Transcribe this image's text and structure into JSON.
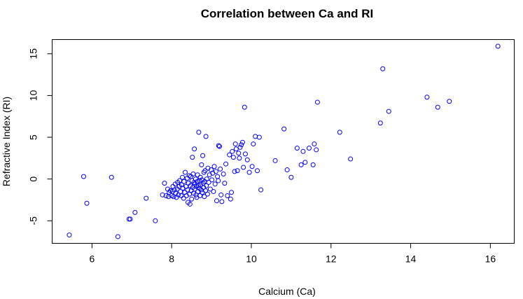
{
  "chart_data": {
    "type": "scatter",
    "title": "Correlation between Ca and RI",
    "xlabel": "Calcium (Ca)",
    "ylabel": "Refractive Index (RI)",
    "xlim": [
      5.0,
      16.6
    ],
    "ylim": [
      -7.7,
      16.7
    ],
    "xticks": [
      6,
      8,
      10,
      12,
      14,
      16
    ],
    "yticks": [
      -5,
      0,
      5,
      10,
      15
    ],
    "marker_color": "#0000ff",
    "points": [
      [
        5.43,
        -6.7
      ],
      [
        5.79,
        0.3
      ],
      [
        5.87,
        -2.9
      ],
      [
        6.49,
        0.2
      ],
      [
        6.65,
        -6.9
      ],
      [
        6.93,
        -4.8
      ],
      [
        6.96,
        -4.8
      ],
      [
        7.08,
        -4.0
      ],
      [
        7.36,
        -2.3
      ],
      [
        7.59,
        -5.0
      ],
      [
        7.77,
        -1.9
      ],
      [
        7.82,
        -0.5
      ],
      [
        7.86,
        -2.0
      ],
      [
        7.9,
        -1.2
      ],
      [
        7.92,
        -2.1
      ],
      [
        7.94,
        -1.6
      ],
      [
        7.97,
        -1.4
      ],
      [
        8.0,
        -2.0
      ],
      [
        8.02,
        -1.5
      ],
      [
        8.03,
        -0.9
      ],
      [
        8.05,
        -2.1
      ],
      [
        8.07,
        -1.3
      ],
      [
        8.09,
        -0.6
      ],
      [
        8.1,
        -1.7
      ],
      [
        8.12,
        -2.2
      ],
      [
        8.14,
        -1.2
      ],
      [
        8.15,
        -0.4
      ],
      [
        8.17,
        -1.9
      ],
      [
        8.19,
        -0.9
      ],
      [
        8.2,
        -0.2
      ],
      [
        8.22,
        -1.5
      ],
      [
        8.24,
        -2.0
      ],
      [
        8.25,
        -0.7
      ],
      [
        8.27,
        0.2
      ],
      [
        8.28,
        -1.1
      ],
      [
        8.3,
        -2.3
      ],
      [
        8.31,
        -0.3
      ],
      [
        8.33,
        -1.6
      ],
      [
        8.34,
        0.8
      ],
      [
        8.36,
        -0.9
      ],
      [
        8.37,
        -2.0
      ],
      [
        8.39,
        0.1
      ],
      [
        8.4,
        -1.3
      ],
      [
        8.41,
        -2.8
      ],
      [
        8.42,
        -0.5
      ],
      [
        8.44,
        0.4
      ],
      [
        8.45,
        -1.8
      ],
      [
        8.46,
        -3.0
      ],
      [
        8.47,
        -0.8
      ],
      [
        8.48,
        0.3
      ],
      [
        8.49,
        -1.4
      ],
      [
        8.5,
        -2.4
      ],
      [
        8.51,
        -0.2
      ],
      [
        8.52,
        2.6
      ],
      [
        8.53,
        -1.0
      ],
      [
        8.54,
        0.6
      ],
      [
        8.55,
        -1.7
      ],
      [
        8.56,
        -0.4
      ],
      [
        8.57,
        3.6
      ],
      [
        8.58,
        -1.2
      ],
      [
        8.59,
        -0.6
      ],
      [
        8.6,
        0.0
      ],
      [
        8.61,
        -1.9
      ],
      [
        8.62,
        -0.9
      ],
      [
        8.63,
        -2.2
      ],
      [
        8.64,
        -0.3
      ],
      [
        8.65,
        0.5
      ],
      [
        8.66,
        -1.5
      ],
      [
        8.67,
        -0.8
      ],
      [
        8.68,
        5.6
      ],
      [
        8.69,
        -1.1
      ],
      [
        8.7,
        -0.2
      ],
      [
        8.71,
        -2.0
      ],
      [
        8.72,
        0.2
      ],
      [
        8.73,
        -0.7
      ],
      [
        8.74,
        -1.3
      ],
      [
        8.75,
        1.7
      ],
      [
        8.76,
        -0.1
      ],
      [
        8.77,
        -1.6
      ],
      [
        8.78,
        2.8
      ],
      [
        8.79,
        -0.5
      ],
      [
        8.8,
        -1.0
      ],
      [
        8.81,
        0.8
      ],
      [
        8.82,
        -2.1
      ],
      [
        8.83,
        -0.3
      ],
      [
        8.84,
        1.0
      ],
      [
        8.85,
        -1.4
      ],
      [
        8.86,
        5.1
      ],
      [
        8.87,
        -0.8
      ],
      [
        8.88,
        0.0
      ],
      [
        8.9,
        -1.8
      ],
      [
        8.91,
        1.3
      ],
      [
        8.93,
        -0.4
      ],
      [
        8.95,
        0.5
      ],
      [
        8.97,
        -1.2
      ],
      [
        8.99,
        1.1
      ],
      [
        9.01,
        -0.1
      ],
      [
        9.03,
        0.7
      ],
      [
        9.05,
        -1.5
      ],
      [
        9.07,
        1.5
      ],
      [
        9.09,
        -0.6
      ],
      [
        9.11,
        0.9
      ],
      [
        9.13,
        -2.6
      ],
      [
        9.15,
        0.3
      ],
      [
        9.17,
        -0.2
      ],
      [
        9.18,
        4.0
      ],
      [
        9.2,
        3.9
      ],
      [
        9.22,
        1.2
      ],
      [
        9.24,
        -1.9
      ],
      [
        9.26,
        -2.7
      ],
      [
        9.3,
        0.6
      ],
      [
        9.33,
        -0.5
      ],
      [
        9.36,
        1.8
      ],
      [
        9.4,
        -2.0
      ],
      [
        9.45,
        2.9
      ],
      [
        9.48,
        -2.4
      ],
      [
        9.5,
        -1.6
      ],
      [
        9.52,
        3.3
      ],
      [
        9.55,
        2.6
      ],
      [
        9.58,
        0.9
      ],
      [
        9.6,
        4.2
      ],
      [
        9.62,
        3.6
      ],
      [
        9.65,
        1.0
      ],
      [
        9.68,
        3.1
      ],
      [
        9.7,
        2.5
      ],
      [
        9.72,
        3.8
      ],
      [
        9.75,
        4.1
      ],
      [
        9.78,
        4.4
      ],
      [
        9.8,
        1.4
      ],
      [
        9.83,
        8.6
      ],
      [
        9.85,
        3.0
      ],
      [
        9.9,
        2.3
      ],
      [
        9.95,
        0.8
      ],
      [
        10.02,
        1.5
      ],
      [
        10.05,
        4.2
      ],
      [
        10.1,
        5.1
      ],
      [
        10.15,
        1.0
      ],
      [
        10.2,
        5.0
      ],
      [
        10.24,
        -1.3
      ],
      [
        10.6,
        2.2
      ],
      [
        10.82,
        6.0
      ],
      [
        10.9,
        1.1
      ],
      [
        11.0,
        0.2
      ],
      [
        11.15,
        3.7
      ],
      [
        11.25,
        1.7
      ],
      [
        11.3,
        3.3
      ],
      [
        11.35,
        2.0
      ],
      [
        11.45,
        3.7
      ],
      [
        11.55,
        1.7
      ],
      [
        11.58,
        4.2
      ],
      [
        11.63,
        3.5
      ],
      [
        11.66,
        9.2
      ],
      [
        12.22,
        5.6
      ],
      [
        12.49,
        2.4
      ],
      [
        13.24,
        6.7
      ],
      [
        13.3,
        13.2
      ],
      [
        13.45,
        8.1
      ],
      [
        14.41,
        9.8
      ],
      [
        14.68,
        8.6
      ],
      [
        14.97,
        9.3
      ],
      [
        16.19,
        15.9
      ]
    ]
  }
}
